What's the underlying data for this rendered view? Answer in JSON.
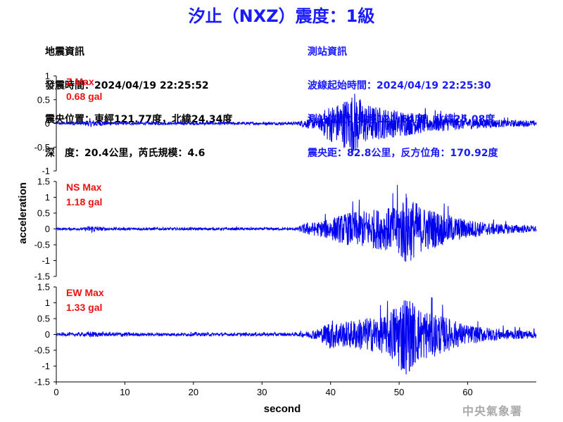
{
  "title": "汐止（NXZ）震度：1級",
  "quake_info": {
    "heading": "地震資訊",
    "time": "發震時間：2024/04/19 22:25:52",
    "location": "震央位置：東經121.77度，北緯24.34度",
    "depth_mag": "深　度：20.4公里，芮氏規模：4.6"
  },
  "station_info": {
    "heading": "測站資訊",
    "wave_start": "波線起始時間：2024/04/19 22:25:30",
    "location": "測站位置：東經121.64度，北緯25.08度",
    "distance": "震央距：82.8公里，反方位角：170.92度"
  },
  "credit": "中央氣象署",
  "colors": {
    "trace": "#0000ee",
    "label": "#ee1111",
    "axis": "#000000",
    "title": "#1a1aff"
  },
  "chart_data": {
    "type": "line",
    "xlabel": "second",
    "ylabel": "acceleration",
    "xlim": [
      0,
      70
    ],
    "xticks": [
      0,
      10,
      20,
      30,
      40,
      50,
      60
    ],
    "grid": false,
    "panels": [
      {
        "name": "Z",
        "max_label": "Z Max",
        "max_value": "0.68 gal",
        "ylim": [
          -1,
          1
        ],
        "yticks": [
          1,
          0.5,
          0,
          -0.5,
          -1
        ],
        "envelope": {
          "t": [
            0,
            4,
            5.2,
            6.5,
            8,
            35,
            36.5,
            38.5,
            39.5,
            41,
            43.5,
            45,
            48,
            50,
            55,
            60,
            65,
            70
          ],
          "amp": [
            0.02,
            0.03,
            0.08,
            0.05,
            0.03,
            0.03,
            0.1,
            0.14,
            0.38,
            0.42,
            0.68,
            0.42,
            0.32,
            0.28,
            0.18,
            0.12,
            0.08,
            0.06
          ]
        }
      },
      {
        "name": "NS",
        "max_label": "NS Max",
        "max_value": "1.18 gal",
        "ylim": [
          -1.5,
          1.5
        ],
        "yticks": [
          1.5,
          1,
          0.5,
          0,
          -0.5,
          -1,
          -1.5
        ],
        "envelope": {
          "t": [
            0,
            4,
            5,
            6.5,
            8,
            35,
            36.5,
            38,
            40,
            43,
            46,
            49,
            51,
            53,
            55,
            58,
            60,
            63,
            66,
            70
          ],
          "amp": [
            0.03,
            0.04,
            0.12,
            0.06,
            0.04,
            0.04,
            0.2,
            0.22,
            0.35,
            0.55,
            0.62,
            0.7,
            1.18,
            0.75,
            0.62,
            0.4,
            0.3,
            0.2,
            0.15,
            0.1
          ]
        }
      },
      {
        "name": "EW",
        "max_label": "EW Max",
        "max_value": "1.33 gal",
        "ylim": [
          -1.5,
          1.5
        ],
        "yticks": [
          1.5,
          1,
          0.5,
          0,
          -0.5,
          -1,
          -1.5
        ],
        "envelope": {
          "t": [
            0,
            4,
            5,
            6.5,
            8,
            9.5,
            11,
            35,
            37,
            38.5,
            40,
            42,
            44,
            46,
            48,
            50.8,
            53,
            55,
            58,
            60,
            63,
            66,
            70
          ],
          "amp": [
            0.04,
            0.05,
            0.1,
            0.06,
            0.05,
            0.08,
            0.05,
            0.05,
            0.12,
            0.2,
            0.48,
            0.4,
            0.5,
            0.55,
            0.6,
            1.33,
            0.85,
            0.72,
            0.45,
            0.3,
            0.22,
            0.16,
            0.12
          ]
        }
      }
    ]
  }
}
